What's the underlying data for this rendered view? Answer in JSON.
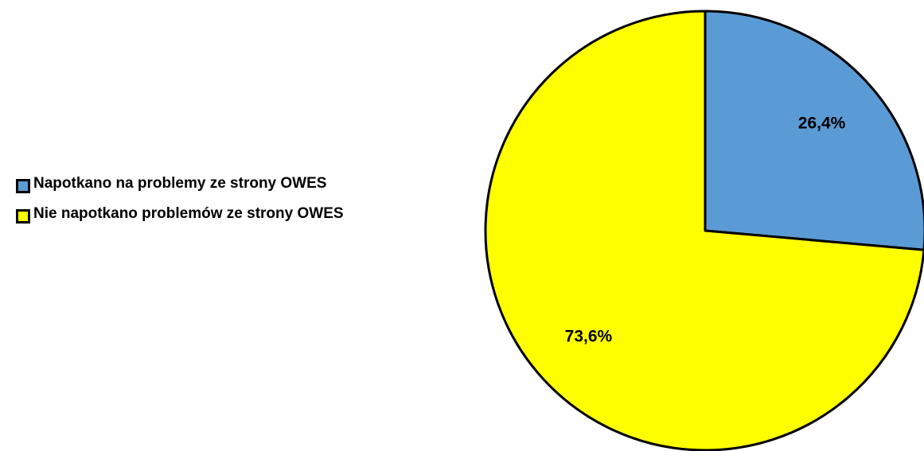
{
  "chart_data": {
    "type": "pie",
    "title": "",
    "slices": [
      {
        "label": "Napotkano na problemy ze strony OWES",
        "value": 26.4,
        "display": "26,4%",
        "color": "#5b9bd5"
      },
      {
        "label": "Nie napotkano problemów ze strony OWES",
        "value": 73.6,
        "display": "73,6%",
        "color": "#ffff00"
      }
    ],
    "start_angle": "12 o'clock",
    "direction": "clockwise",
    "legend": {
      "position": "left"
    },
    "outline_color": "#000000"
  }
}
